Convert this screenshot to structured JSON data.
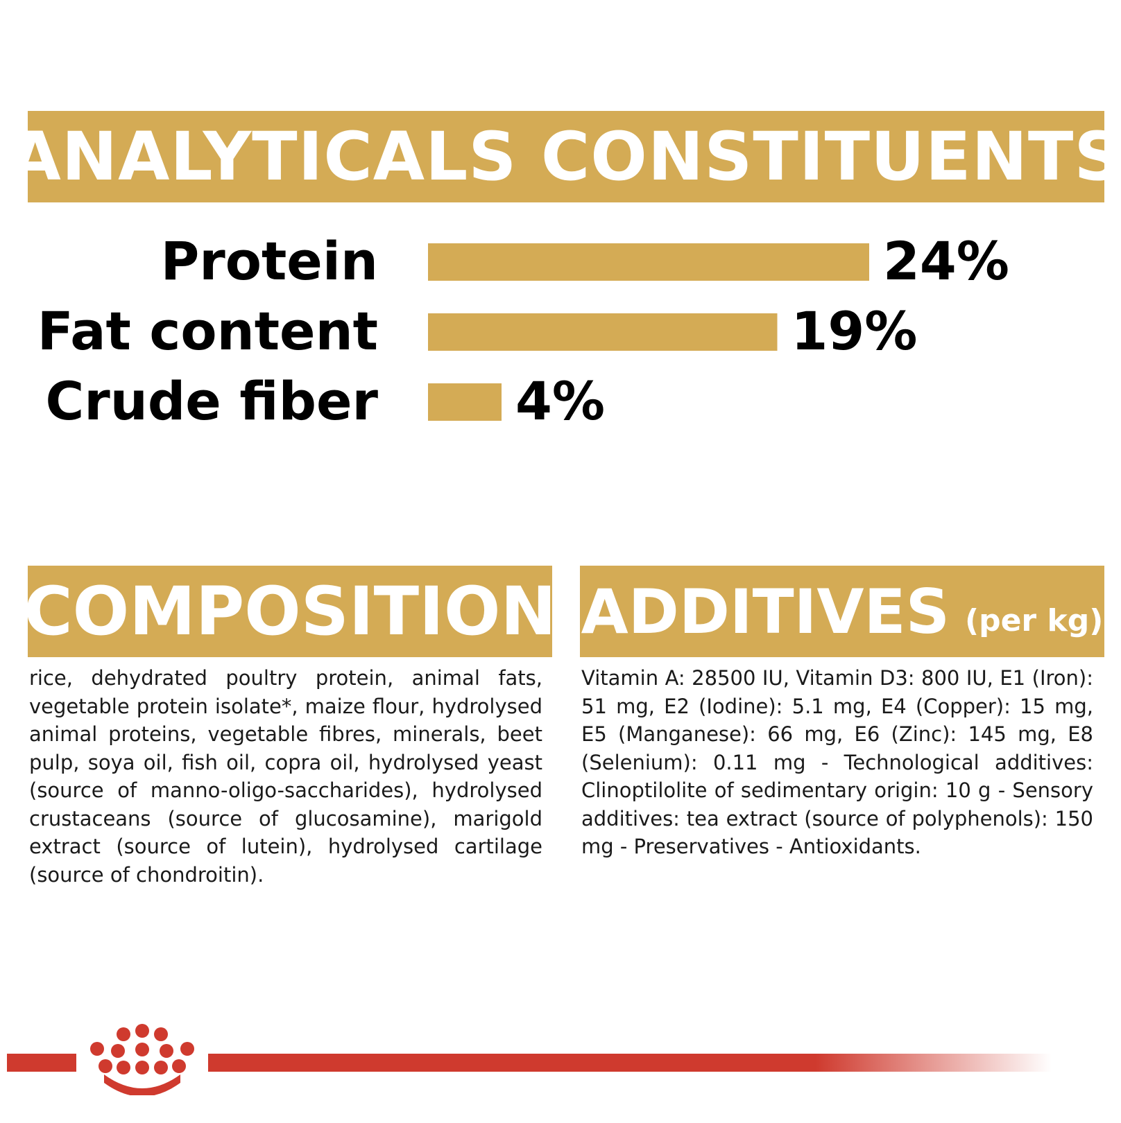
{
  "banners": {
    "analytics": "ANALYTICALS CONSTITUENTS",
    "composition": "COMPOSITION",
    "additives": "ADDITIVES",
    "additives_sub": "(per kg)"
  },
  "colors": {
    "accent": "#d4ab55",
    "brand_red": "#cf3a2e",
    "text": "#000000"
  },
  "chart_data": {
    "type": "bar",
    "orientation": "horizontal",
    "categories": [
      "Protein",
      "Fat content",
      "Crude fiber"
    ],
    "values": [
      24,
      19,
      4
    ],
    "value_labels": [
      "24%",
      "19%",
      "4%"
    ],
    "grid": false
  },
  "composition_text": "rice, dehydrated poultry protein, animal fats, vegetable protein isolate*, maize flour, hydrolysed animal proteins, vegetable fibres, minerals, beet pulp, soya oil, fish oil, copra oil, hydrolysed yeast (source of manno-oligo-saccharides), hydrolysed crustaceans (source of glucosamine), marigold extract (source of lutein), hydrolysed cartilage (source of chondroitin).",
  "additives_text": "Vitamin A: 28500 IU, Vitamin D3: 800 IU, E1 (Iron): 51 mg, E2 (Iodine): 5.1 mg, E4 (Copper): 15 mg, E5 (Manganese): 66 mg, E6 (Zinc): 145 mg, E8 (Selenium): 0.11 mg - Technological additives: Clinoptilolite of sedimentary origin: 10 g - Sensory additives: tea extract (source of polyphenols): 150 mg - Preservatives - Antioxidants.",
  "footer": {
    "logo_icon": "crown-logo-icon"
  }
}
